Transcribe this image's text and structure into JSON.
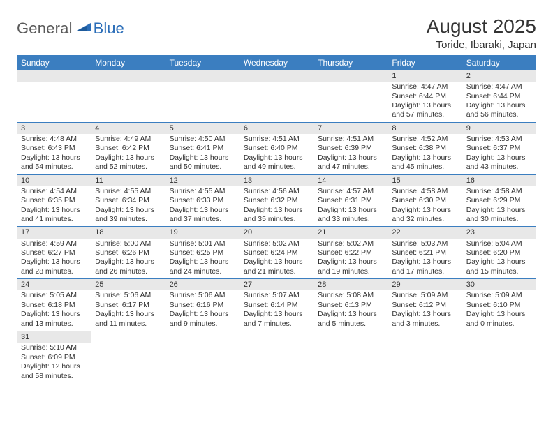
{
  "logo": {
    "general": "General",
    "blue": "Blue"
  },
  "title": "August 2025",
  "location": "Toride, Ibaraki, Japan",
  "colors": {
    "header_bg": "#3b7ec0",
    "header_text": "#ffffff",
    "daynum_bg": "#e8e8e8",
    "row_divider": "#3b7ec0",
    "text": "#333333",
    "logo_gray": "#5a5a5a",
    "logo_blue": "#2a6db8"
  },
  "days_of_week": [
    "Sunday",
    "Monday",
    "Tuesday",
    "Wednesday",
    "Thursday",
    "Friday",
    "Saturday"
  ],
  "weeks": [
    [
      null,
      null,
      null,
      null,
      null,
      {
        "n": "1",
        "sunrise": "Sunrise: 4:47 AM",
        "sunset": "Sunset: 6:44 PM",
        "day": "Daylight: 13 hours and 57 minutes."
      },
      {
        "n": "2",
        "sunrise": "Sunrise: 4:47 AM",
        "sunset": "Sunset: 6:44 PM",
        "day": "Daylight: 13 hours and 56 minutes."
      }
    ],
    [
      {
        "n": "3",
        "sunrise": "Sunrise: 4:48 AM",
        "sunset": "Sunset: 6:43 PM",
        "day": "Daylight: 13 hours and 54 minutes."
      },
      {
        "n": "4",
        "sunrise": "Sunrise: 4:49 AM",
        "sunset": "Sunset: 6:42 PM",
        "day": "Daylight: 13 hours and 52 minutes."
      },
      {
        "n": "5",
        "sunrise": "Sunrise: 4:50 AM",
        "sunset": "Sunset: 6:41 PM",
        "day": "Daylight: 13 hours and 50 minutes."
      },
      {
        "n": "6",
        "sunrise": "Sunrise: 4:51 AM",
        "sunset": "Sunset: 6:40 PM",
        "day": "Daylight: 13 hours and 49 minutes."
      },
      {
        "n": "7",
        "sunrise": "Sunrise: 4:51 AM",
        "sunset": "Sunset: 6:39 PM",
        "day": "Daylight: 13 hours and 47 minutes."
      },
      {
        "n": "8",
        "sunrise": "Sunrise: 4:52 AM",
        "sunset": "Sunset: 6:38 PM",
        "day": "Daylight: 13 hours and 45 minutes."
      },
      {
        "n": "9",
        "sunrise": "Sunrise: 4:53 AM",
        "sunset": "Sunset: 6:37 PM",
        "day": "Daylight: 13 hours and 43 minutes."
      }
    ],
    [
      {
        "n": "10",
        "sunrise": "Sunrise: 4:54 AM",
        "sunset": "Sunset: 6:35 PM",
        "day": "Daylight: 13 hours and 41 minutes."
      },
      {
        "n": "11",
        "sunrise": "Sunrise: 4:55 AM",
        "sunset": "Sunset: 6:34 PM",
        "day": "Daylight: 13 hours and 39 minutes."
      },
      {
        "n": "12",
        "sunrise": "Sunrise: 4:55 AM",
        "sunset": "Sunset: 6:33 PM",
        "day": "Daylight: 13 hours and 37 minutes."
      },
      {
        "n": "13",
        "sunrise": "Sunrise: 4:56 AM",
        "sunset": "Sunset: 6:32 PM",
        "day": "Daylight: 13 hours and 35 minutes."
      },
      {
        "n": "14",
        "sunrise": "Sunrise: 4:57 AM",
        "sunset": "Sunset: 6:31 PM",
        "day": "Daylight: 13 hours and 33 minutes."
      },
      {
        "n": "15",
        "sunrise": "Sunrise: 4:58 AM",
        "sunset": "Sunset: 6:30 PM",
        "day": "Daylight: 13 hours and 32 minutes."
      },
      {
        "n": "16",
        "sunrise": "Sunrise: 4:58 AM",
        "sunset": "Sunset: 6:29 PM",
        "day": "Daylight: 13 hours and 30 minutes."
      }
    ],
    [
      {
        "n": "17",
        "sunrise": "Sunrise: 4:59 AM",
        "sunset": "Sunset: 6:27 PM",
        "day": "Daylight: 13 hours and 28 minutes."
      },
      {
        "n": "18",
        "sunrise": "Sunrise: 5:00 AM",
        "sunset": "Sunset: 6:26 PM",
        "day": "Daylight: 13 hours and 26 minutes."
      },
      {
        "n": "19",
        "sunrise": "Sunrise: 5:01 AM",
        "sunset": "Sunset: 6:25 PM",
        "day": "Daylight: 13 hours and 24 minutes."
      },
      {
        "n": "20",
        "sunrise": "Sunrise: 5:02 AM",
        "sunset": "Sunset: 6:24 PM",
        "day": "Daylight: 13 hours and 21 minutes."
      },
      {
        "n": "21",
        "sunrise": "Sunrise: 5:02 AM",
        "sunset": "Sunset: 6:22 PM",
        "day": "Daylight: 13 hours and 19 minutes."
      },
      {
        "n": "22",
        "sunrise": "Sunrise: 5:03 AM",
        "sunset": "Sunset: 6:21 PM",
        "day": "Daylight: 13 hours and 17 minutes."
      },
      {
        "n": "23",
        "sunrise": "Sunrise: 5:04 AM",
        "sunset": "Sunset: 6:20 PM",
        "day": "Daylight: 13 hours and 15 minutes."
      }
    ],
    [
      {
        "n": "24",
        "sunrise": "Sunrise: 5:05 AM",
        "sunset": "Sunset: 6:18 PM",
        "day": "Daylight: 13 hours and 13 minutes."
      },
      {
        "n": "25",
        "sunrise": "Sunrise: 5:06 AM",
        "sunset": "Sunset: 6:17 PM",
        "day": "Daylight: 13 hours and 11 minutes."
      },
      {
        "n": "26",
        "sunrise": "Sunrise: 5:06 AM",
        "sunset": "Sunset: 6:16 PM",
        "day": "Daylight: 13 hours and 9 minutes."
      },
      {
        "n": "27",
        "sunrise": "Sunrise: 5:07 AM",
        "sunset": "Sunset: 6:14 PM",
        "day": "Daylight: 13 hours and 7 minutes."
      },
      {
        "n": "28",
        "sunrise": "Sunrise: 5:08 AM",
        "sunset": "Sunset: 6:13 PM",
        "day": "Daylight: 13 hours and 5 minutes."
      },
      {
        "n": "29",
        "sunrise": "Sunrise: 5:09 AM",
        "sunset": "Sunset: 6:12 PM",
        "day": "Daylight: 13 hours and 3 minutes."
      },
      {
        "n": "30",
        "sunrise": "Sunrise: 5:09 AM",
        "sunset": "Sunset: 6:10 PM",
        "day": "Daylight: 13 hours and 0 minutes."
      }
    ],
    [
      {
        "n": "31",
        "sunrise": "Sunrise: 5:10 AM",
        "sunset": "Sunset: 6:09 PM",
        "day": "Daylight: 12 hours and 58 minutes."
      },
      null,
      null,
      null,
      null,
      null,
      null
    ]
  ]
}
